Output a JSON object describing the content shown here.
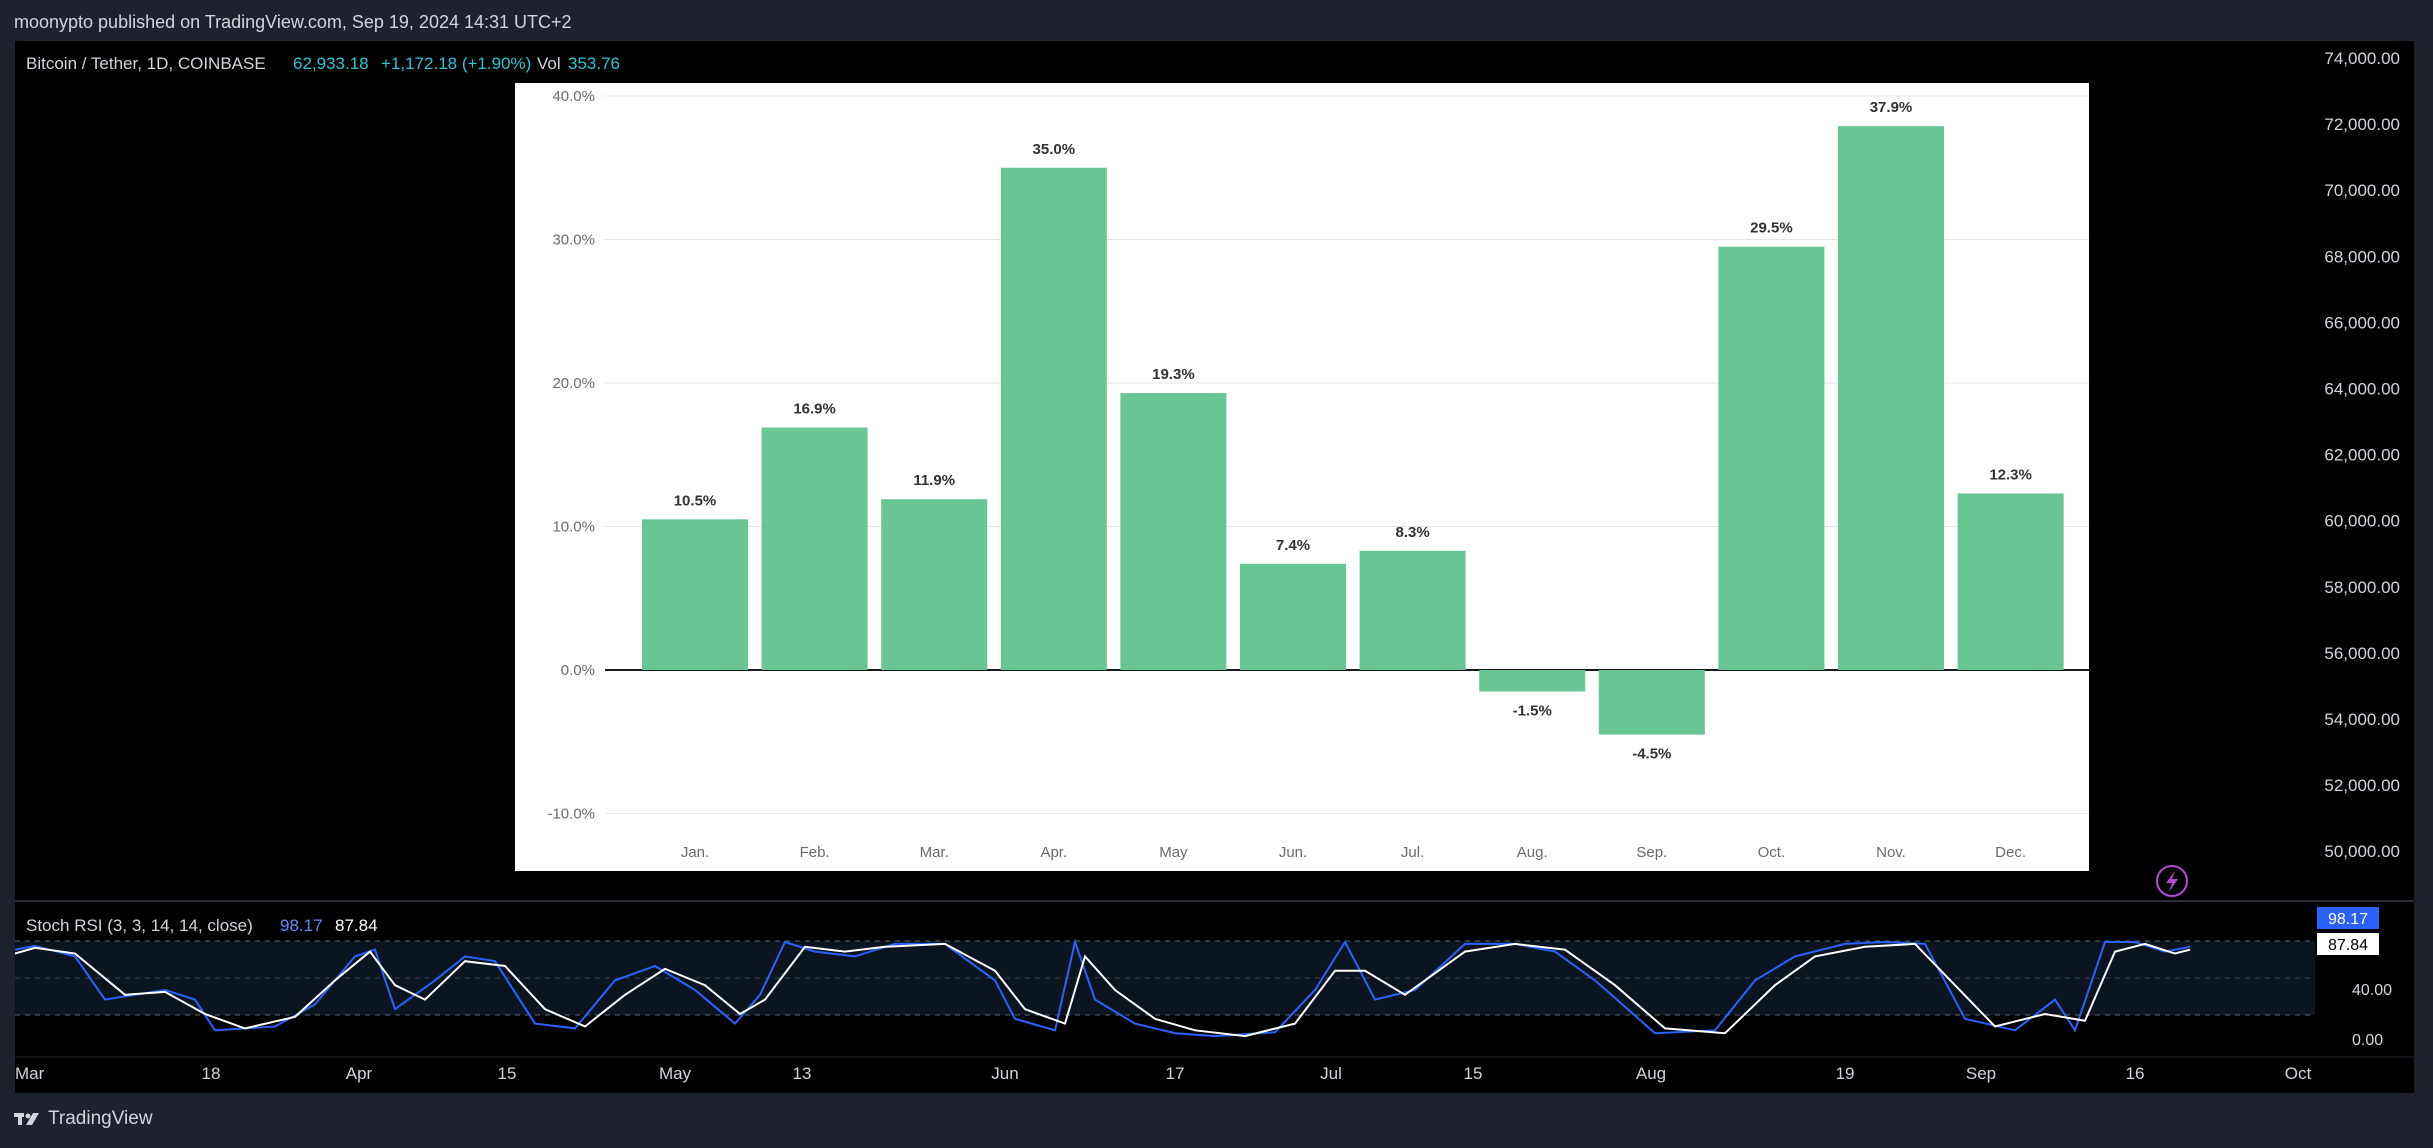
{
  "publisher": "moonypto published on TradingView.com, Sep 19, 2024 14:31 UTC+2",
  "symbol": {
    "name": "Bitcoin / Tether, 1D, COINBASE",
    "price": "62,933.18",
    "change": "+1,172.18 (+1.90%)",
    "vol_label": "Vol",
    "vol_value": "353.76"
  },
  "price_axis": [
    "74,000.00",
    "72,000.00",
    "70,000.00",
    "68,000.00",
    "66,000.00",
    "64,000.00",
    "62,000.00",
    "60,000.00",
    "58,000.00",
    "56,000.00",
    "54,000.00",
    "52,000.00",
    "50,000.00"
  ],
  "rsi": {
    "label": "Stoch RSI (3, 3, 14, 14, close)",
    "k_value": "98.17",
    "d_value": "87.84",
    "axis": [
      "40.00",
      "0.00"
    ],
    "k_badge": "98.17",
    "d_badge": "87.84"
  },
  "time_axis": [
    "Mar",
    "18",
    "Apr",
    "15",
    "May",
    "13",
    "Jun",
    "17",
    "Jul",
    "15",
    "Aug",
    "19",
    "Sep",
    "16",
    "Oct"
  ],
  "footer": {
    "brand": "TradingView"
  },
  "colors": {
    "bar": "#68c594",
    "k_line": "#2962ff",
    "d_line": "#ffffff",
    "background": "#000000"
  },
  "chart_data": {
    "type": "bar",
    "categories": [
      "Jan.",
      "Feb.",
      "Mar.",
      "Apr.",
      "May",
      "Jun.",
      "Jul.",
      "Aug.",
      "Sep.",
      "Oct.",
      "Nov.",
      "Dec."
    ],
    "values": [
      10.5,
      16.9,
      11.9,
      35.0,
      19.3,
      7.4,
      8.3,
      -1.5,
      -4.5,
      29.5,
      37.9,
      12.3
    ],
    "value_labels": [
      "10.5%",
      "16.9%",
      "11.9%",
      "35.0%",
      "19.3%",
      "7.4%",
      "8.3%",
      "-1.5%",
      "-4.5%",
      "29.5%",
      "37.9%",
      "12.3%"
    ],
    "yticks": [
      "40.0%",
      "30.0%",
      "20.0%",
      "10.0%",
      "0.0%",
      "-10.0%"
    ],
    "ylim": [
      -10,
      40
    ],
    "grid": true
  }
}
